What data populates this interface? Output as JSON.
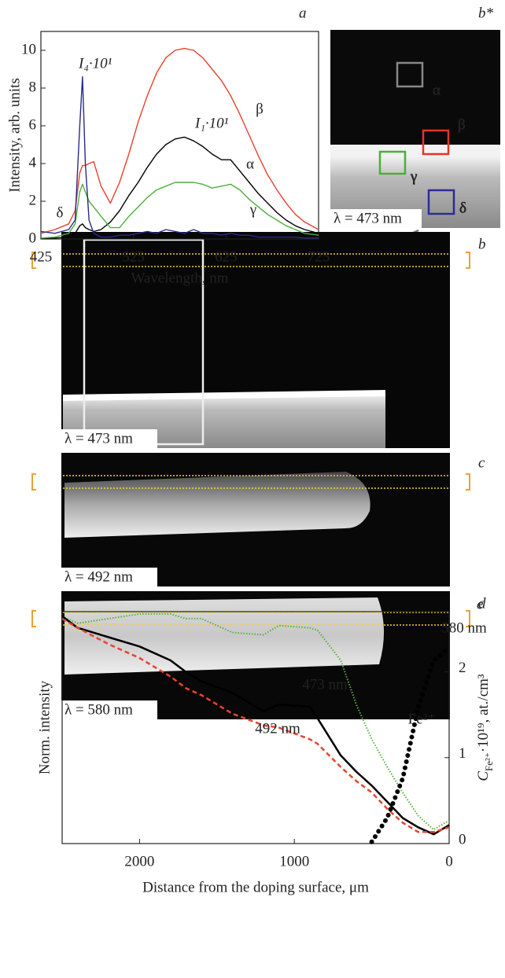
{
  "chart_data": [
    {
      "type": "line",
      "panel_label": "a",
      "xlabel": "Wavelength, nm",
      "ylabel": "Intensity, arb. units",
      "x": [
        425,
        440,
        455,
        462,
        467,
        470,
        473,
        477,
        482,
        490,
        500,
        510,
        520,
        530,
        540,
        550,
        560,
        570,
        580,
        590,
        600,
        610,
        620,
        630,
        640,
        650,
        660,
        670,
        680,
        690,
        700,
        710,
        725
      ],
      "series": [
        {
          "name": "β",
          "color": "#e8412c",
          "values": [
            0.3,
            0.5,
            0.8,
            1.5,
            3.5,
            3.9,
            3.9,
            4.0,
            4.1,
            2.8,
            1.9,
            3.0,
            4.5,
            6.2,
            7.6,
            8.8,
            9.6,
            10.0,
            10.1,
            10.0,
            9.6,
            9.0,
            8.4,
            7.6,
            6.6,
            5.5,
            4.4,
            3.4,
            2.6,
            1.9,
            1.3,
            0.9,
            0.5
          ]
        },
        {
          "name": "α",
          "color": "#000000",
          "values": [
            0.05,
            0.05,
            0.1,
            0.3,
            0.7,
            0.8,
            0.6,
            0.5,
            0.4,
            0.5,
            0.9,
            1.5,
            2.3,
            3.0,
            3.8,
            4.5,
            5.0,
            5.3,
            5.4,
            5.2,
            4.9,
            4.5,
            4.2,
            4.2,
            3.6,
            3.0,
            2.4,
            1.9,
            1.4,
            1.0,
            0.7,
            0.5,
            0.3
          ]
        },
        {
          "name": "γ",
          "color": "#4caf3a",
          "values": [
            0.05,
            0.1,
            0.3,
            0.8,
            2.5,
            2.9,
            2.5,
            2.0,
            1.7,
            1.2,
            0.6,
            0.6,
            1.2,
            1.7,
            2.2,
            2.6,
            2.8,
            3.0,
            3.0,
            3.0,
            2.9,
            2.7,
            2.8,
            2.9,
            2.6,
            2.1,
            1.7,
            1.3,
            1.0,
            0.7,
            0.5,
            0.3,
            0.2
          ]
        },
        {
          "name": "δ",
          "color": "#2a2a8c",
          "values": [
            0.4,
            0.3,
            0.5,
            1.0,
            6.0,
            8.6,
            4.0,
            1.0,
            0.3,
            0.1,
            0.1,
            0.2,
            0.2,
            0.3,
            0.4,
            0.3,
            0.5,
            0.4,
            0.3,
            0.5,
            0.3,
            0.3,
            0.2,
            0.3,
            0.2,
            0.2,
            0.1,
            0.1,
            0.1,
            0.1,
            0.1,
            0.05,
            0.05
          ]
        }
      ],
      "annotations": [
        "I₄·10¹",
        "I₁·10¹"
      ],
      "xlim": [
        425,
        725
      ],
      "xticks": [
        425,
        525,
        625,
        725
      ],
      "ylim": [
        0,
        11
      ],
      "yticks": [
        0,
        2,
        4,
        6,
        8,
        10
      ]
    },
    {
      "type": "line",
      "panel_label": "e",
      "xlabel": "Distance from the doping surface, μm",
      "ylabel": "Norm. intensity",
      "y2label": [
        "C",
        "Fe²⁺",
        "·10¹⁹, at./cm³"
      ],
      "x": [
        2500,
        2400,
        2200,
        2000,
        1800,
        1700,
        1600,
        1400,
        1200,
        1100,
        900,
        850,
        700,
        600,
        500,
        400,
        300,
        200,
        100,
        0
      ],
      "series": [
        {
          "name": "580 nm",
          "color": "#5ab03c",
          "style": "dotted",
          "values": [
            0.98,
            0.95,
            0.97,
            0.99,
            0.99,
            0.97,
            0.97,
            0.91,
            0.9,
            0.94,
            0.93,
            0.92,
            0.79,
            0.6,
            0.45,
            0.33,
            0.22,
            0.12,
            0.06,
            0.1
          ]
        },
        {
          "name": "473 nm",
          "color": "#000000",
          "style": "solid",
          "values": [
            0.98,
            0.93,
            0.89,
            0.85,
            0.79,
            0.74,
            0.7,
            0.65,
            0.57,
            0.6,
            0.59,
            0.54,
            0.38,
            0.31,
            0.25,
            0.18,
            0.11,
            0.07,
            0.04,
            0.08
          ]
        },
        {
          "name": "492 nm",
          "color": "#e8442a",
          "style": "dashed",
          "values": [
            0.97,
            0.93,
            0.86,
            0.8,
            0.72,
            0.67,
            0.64,
            0.56,
            0.51,
            0.5,
            0.45,
            0.43,
            0.33,
            0.27,
            0.22,
            0.15,
            0.09,
            0.05,
            0.05,
            0.07
          ]
        },
        {
          "name": "Fe²⁺",
          "color": "#000000",
          "style": "dots",
          "axis": "y2",
          "values": [
            null,
            null,
            null,
            null,
            null,
            null,
            null,
            null,
            null,
            null,
            null,
            null,
            null,
            null,
            0.02,
            0.3,
            0.76,
            1.58,
            2.13,
            2.28
          ]
        }
      ],
      "xlim": [
        2500,
        0
      ],
      "xticks": [
        2000,
        1000,
        0
      ],
      "ylim": [
        0,
        1
      ],
      "y2lim": [
        0,
        2.7
      ],
      "y2ticks": [
        0,
        1,
        2
      ]
    }
  ],
  "images": {
    "b_star": {
      "letter": "b*",
      "wavelength": "λ = 473 nm",
      "regions": [
        "α",
        "β",
        "γ",
        "δ"
      ]
    },
    "b": {
      "letter": "b",
      "wavelength": "λ = 473 nm"
    },
    "c": {
      "letter": "c",
      "wavelength": "λ = 492 nm"
    },
    "d": {
      "letter": "d",
      "wavelength": "λ = 580 nm"
    }
  }
}
